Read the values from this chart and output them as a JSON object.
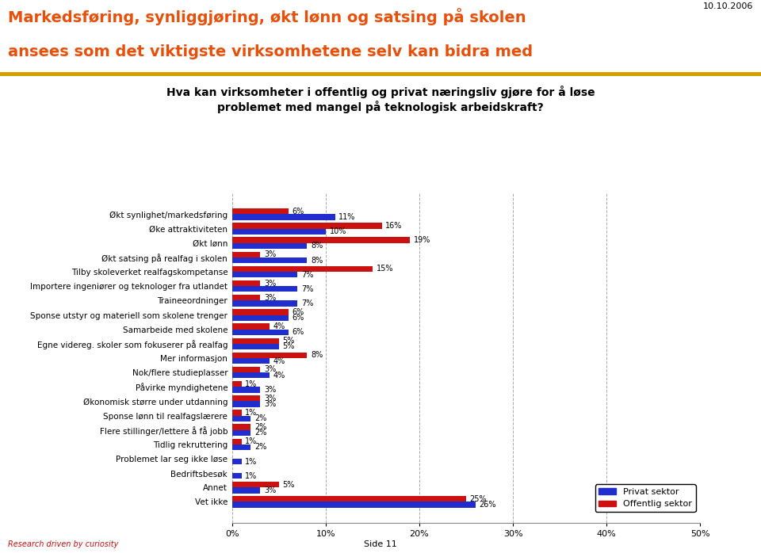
{
  "title_line1": "Markedsføring, synliggjøring, økt lønn og satsing på skolen",
  "title_line2": "ansees som det viktigste virksomhetene selv kan bidra med",
  "subtitle": "Hva kan virksomheter i offentlig og privat næringsliv gjøre for å løse\nproblemet med mangel på teknologisk arbeidskraft?",
  "date": "10.10.2006",
  "footer_left": "Research driven by curiosity",
  "footer_center": "Side 11",
  "categories": [
    "Økt synlighet/markedsføring",
    "Øke attraktiviteten",
    "Økt lønn",
    "Økt satsing på realfag i skolen",
    "Tilby skoleverket realfagskompetanse",
    "Importere ingeniører og teknologer fra utlandet",
    "Traineeordninger",
    "Sponse utstyr og materiell som skolene trenger",
    "Samarbeide med skolene",
    "Egne videreg. skoler som fokuserer på realfag",
    "Mer informasjon",
    "Nok/flere studieplasser",
    "Påvirke myndighetene",
    "Økonomisk større under utdanning",
    "Sponse lønn til realfagslærere",
    "Flere stillinger/lettere å få jobb",
    "Tidlig rekruttering",
    "Problemet lar seg ikke løse",
    "Bedriftsbesøk",
    "Annet",
    "Vet ikke"
  ],
  "privat": [
    11,
    10,
    8,
    8,
    7,
    7,
    7,
    6,
    6,
    5,
    4,
    4,
    3,
    3,
    2,
    2,
    2,
    1,
    1,
    3,
    26
  ],
  "offentlig": [
    6,
    16,
    19,
    3,
    15,
    3,
    3,
    6,
    4,
    5,
    8,
    3,
    1,
    3,
    1,
    2,
    1,
    0,
    0,
    5,
    25
  ],
  "privat_color": "#1F2ECC",
  "offentlig_color": "#CC1111",
  "title_color": "#E8500A",
  "line_color": "#D4A000",
  "background_color": "#FFFFFF",
  "xlim": [
    0,
    50
  ],
  "xticks": [
    0,
    10,
    20,
    30,
    40,
    50
  ],
  "xtick_labels": [
    "0%",
    "10%",
    "20%",
    "30%",
    "40%",
    "50%"
  ],
  "legend_privat": "Privat sektor",
  "legend_offentlig": "Offentlig sektor",
  "bar_height": 0.4,
  "title_fontsize": 14,
  "subtitle_fontsize": 10,
  "ytick_fontsize": 7.5,
  "xtick_fontsize": 8,
  "label_fontsize": 7,
  "date_fontsize": 8
}
